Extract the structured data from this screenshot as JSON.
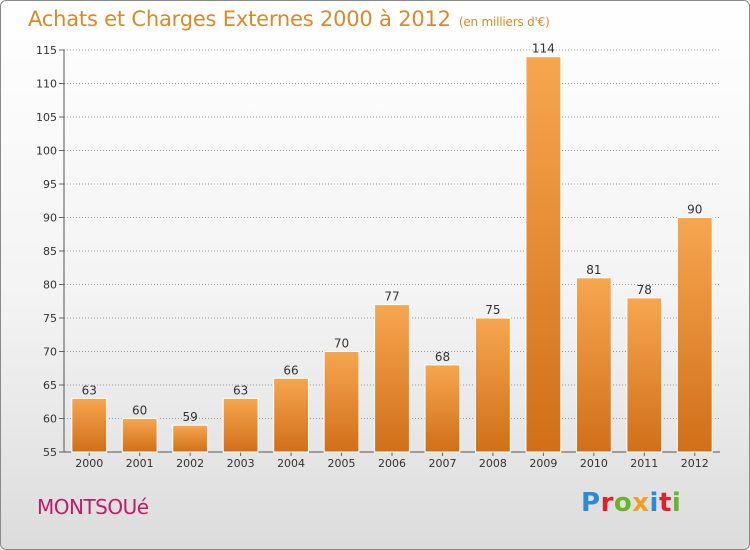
{
  "title": "Achats et Charges Externes 2000 à 2012",
  "subtitle": "(en milliers d'€)",
  "commune": "MONTSOUé",
  "logo": {
    "text": "Proxiti",
    "letters": [
      {
        "ch": "P",
        "color": "#2a8ad4"
      },
      {
        "ch": "r",
        "color": "#e0202a"
      },
      {
        "ch": "o",
        "color": "#6ab42a"
      },
      {
        "ch": "x",
        "color": "#f0a020"
      },
      {
        "ch": "i",
        "color": "#2a8ad4"
      },
      {
        "ch": "t",
        "color": "#e0202a"
      },
      {
        "ch": "i",
        "color": "#6ab42a"
      }
    ]
  },
  "colors": {
    "bar_top": "#f7a650",
    "bar_bottom": "#d06f18",
    "grid": "#9a9a9a",
    "title": "#d98a2a",
    "commune": "#c41a6a"
  },
  "chart_data": {
    "type": "bar",
    "categories": [
      "2000",
      "2001",
      "2002",
      "2003",
      "2004",
      "2005",
      "2006",
      "2007",
      "2008",
      "2009",
      "2010",
      "2011",
      "2012"
    ],
    "values": [
      63,
      60,
      59,
      63,
      66,
      70,
      77,
      68,
      75,
      114,
      81,
      78,
      90
    ],
    "ylim": [
      55,
      115
    ],
    "yticks": [
      55,
      60,
      65,
      70,
      75,
      80,
      85,
      90,
      95,
      100,
      105,
      110,
      115
    ],
    "grid": true,
    "xlabel": "",
    "ylabel": ""
  }
}
